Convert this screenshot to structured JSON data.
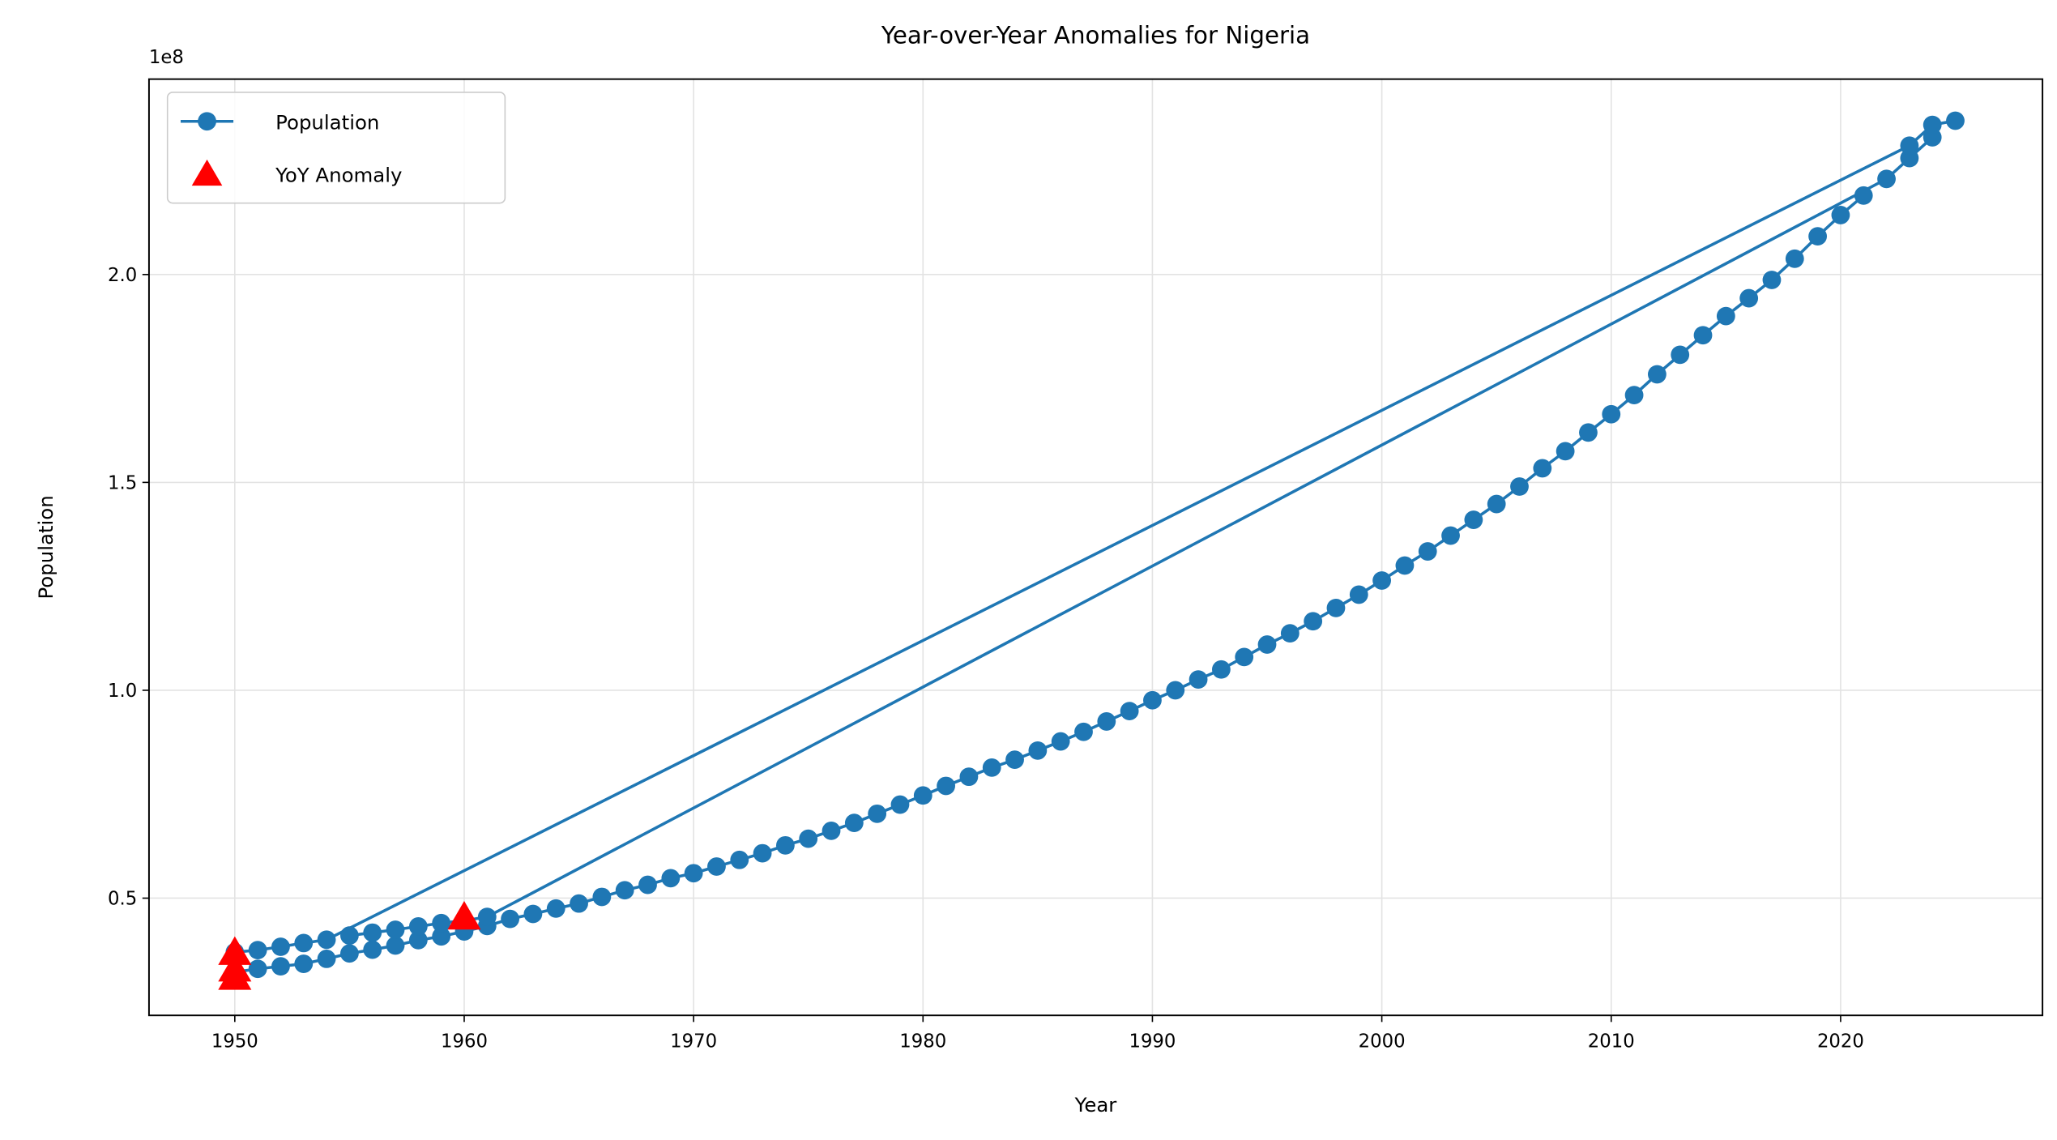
{
  "chart_data": {
    "type": "line",
    "title": "Year-over-Year Anomalies for Nigeria",
    "x_label": "Year",
    "y_label": "Population",
    "y_offset_label": "1e8",
    "x": [
      1950,
      1951,
      1952,
      1953,
      1954,
      1955,
      1956,
      1957,
      1958,
      1959,
      1960,
      1961,
      1962,
      1963,
      1964,
      1965,
      1966,
      1967,
      1968,
      1969,
      1970,
      1971,
      1972,
      1973,
      1974,
      1975,
      1976,
      1977,
      1978,
      1979,
      1980,
      1981,
      1982,
      1983,
      1984,
      1985,
      1986,
      1987,
      1988,
      1989,
      1990,
      1991,
      1992,
      1993,
      1994,
      1995,
      1996,
      1997,
      1998,
      1999,
      2000,
      2001,
      2002,
      2003,
      2004,
      2005,
      2006,
      2007,
      2008,
      2009,
      2010,
      2011,
      2012,
      2013,
      2014,
      2015,
      2016,
      2017,
      2018,
      2019,
      2020,
      2021,
      null,
      1955,
      1956,
      1957,
      1958,
      1959,
      1960,
      1961,
      2022,
      2023,
      2024,
      null,
      1950,
      1951,
      1952,
      1953,
      1954,
      2023,
      2024,
      2025
    ],
    "series": [
      {
        "name": "Population",
        "color": "#1f77b4",
        "values": [
          0.322,
          0.33,
          0.336,
          0.342,
          0.354,
          0.367,
          0.376,
          0.386,
          0.399,
          0.408,
          0.42,
          0.433,
          0.45,
          0.462,
          0.475,
          0.487,
          0.503,
          0.519,
          0.532,
          0.548,
          0.56,
          0.576,
          0.592,
          0.608,
          0.627,
          0.643,
          0.662,
          0.681,
          0.703,
          0.725,
          0.747,
          0.77,
          0.792,
          0.814,
          0.833,
          0.855,
          0.877,
          0.9,
          0.925,
          0.95,
          0.976,
          1.0,
          1.026,
          1.05,
          1.08,
          1.11,
          1.137,
          1.166,
          1.198,
          1.23,
          1.264,
          1.3,
          1.334,
          1.372,
          1.41,
          1.448,
          1.49,
          1.534,
          1.575,
          1.62,
          1.664,
          1.71,
          1.76,
          1.807,
          1.854,
          1.9,
          1.943,
          1.987,
          2.038,
          2.092,
          2.143,
          2.19,
          null,
          0.41,
          0.417,
          0.424,
          0.432,
          0.44,
          0.446,
          0.455,
          2.23,
          2.28,
          2.33,
          null,
          0.37,
          0.375,
          0.383,
          0.392,
          0.4,
          2.31,
          2.36,
          2.37
        ]
      }
    ],
    "anomalies": {
      "name": "YoY Anomaly",
      "color": "#ff0000",
      "x": [
        1950,
        1950,
        1950,
        1960
      ],
      "values": [
        0.37,
        0.33,
        0.31,
        0.455
      ]
    },
    "xlim": [
      1946.26,
      2028.8
    ],
    "ylim": [
      0.218,
      2.47
    ],
    "xticks": [
      1950,
      1960,
      1970,
      1980,
      1990,
      2000,
      2010,
      2020
    ],
    "yticks": [
      0.5,
      {
        "value": 1,
        "label": "1.0"
      },
      1.5,
      {
        "value": 2,
        "label": "2.0"
      }
    ],
    "grid": true,
    "legend": "upper left"
  }
}
